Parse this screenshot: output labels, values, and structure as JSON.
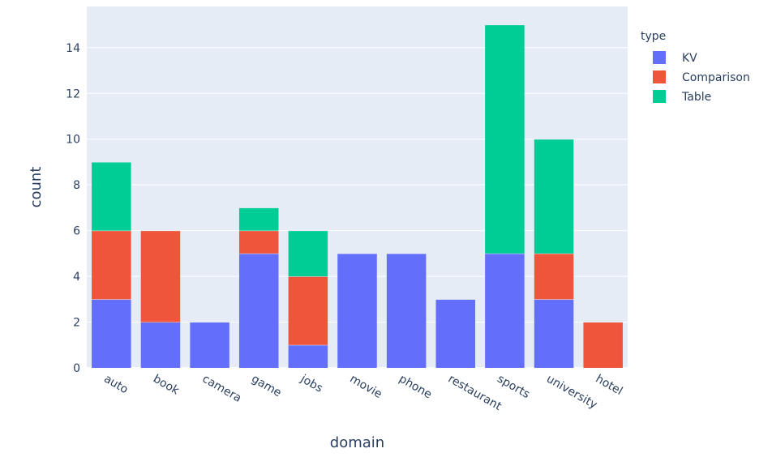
{
  "chart_data": {
    "type": "bar",
    "stacked": true,
    "categories": [
      "auto",
      "book",
      "camera",
      "game",
      "jobs",
      "movie",
      "phone",
      "restaurant",
      "sports",
      "university",
      "hotel"
    ],
    "series": [
      {
        "name": "KV",
        "color": "#636efa",
        "values": [
          3,
          2,
          2,
          5,
          1,
          5,
          5,
          3,
          5,
          3,
          0
        ]
      },
      {
        "name": "Comparison",
        "color": "#ef553b",
        "values": [
          3,
          4,
          0,
          1,
          3,
          0,
          0,
          0,
          0,
          2,
          2
        ]
      },
      {
        "name": "Table",
        "color": "#00cc96",
        "values": [
          3,
          0,
          0,
          1,
          2,
          0,
          0,
          0,
          10,
          5,
          0
        ]
      }
    ],
    "xlabel": "domain",
    "ylabel": "count",
    "ylim": [
      0,
      15.8
    ],
    "yticks": [
      0,
      2,
      4,
      6,
      8,
      10,
      12,
      14
    ],
    "legend_title": "type",
    "legend_position": "top-right",
    "grid": true,
    "plot_background": "#e5ecf6"
  }
}
